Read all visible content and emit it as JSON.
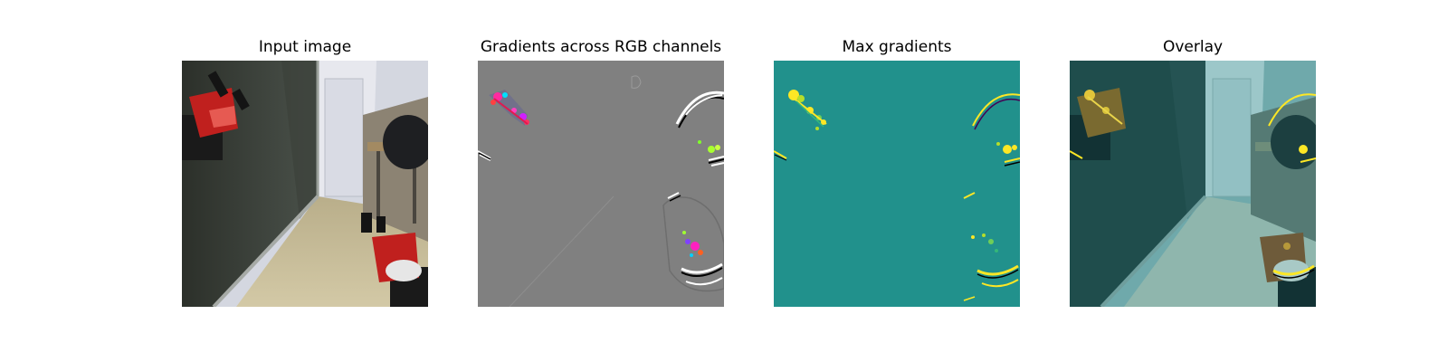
{
  "panels": [
    {
      "title": "Input image",
      "image_kind": "camera-frame-with-robot-grippers"
    },
    {
      "title": "Gradients across RGB channels",
      "image_kind": "rgb-gradient-map"
    },
    {
      "title": "Max gradients",
      "image_kind": "max-gradient-heatmap"
    },
    {
      "title": "Overlay",
      "image_kind": "heatmap-overlay-on-input"
    }
  ],
  "colors": {
    "gradient_background": "#808080",
    "heatmap_background": "#21918c",
    "heatmap_high": "#fde725",
    "overlay_tint": "#1f8b8b",
    "gripper_red": "#c0201e",
    "floor": "#c9bf9c"
  }
}
